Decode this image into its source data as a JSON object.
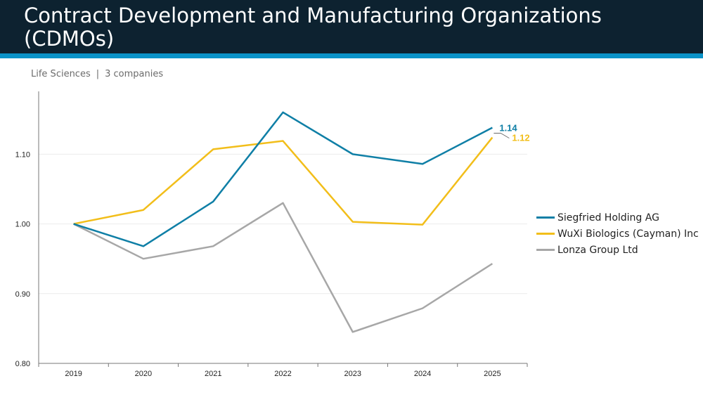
{
  "header": {
    "title": "Contract Development and Manufacturing Organizations (CDMOs)",
    "subtitle_sector": "Life Sciences",
    "subtitle_separator": "|",
    "subtitle_count": "3 companies"
  },
  "colors": {
    "header_bg": "#0d2230",
    "stripe": "#0a93c8"
  },
  "chart_data": {
    "type": "line",
    "x": [
      "2019",
      "2020",
      "2021",
      "2022",
      "2023",
      "2024",
      "2025"
    ],
    "ylim": [
      0.8,
      1.18
    ],
    "yticks": [
      0.8,
      0.9,
      1.0,
      1.1
    ],
    "ytick_labels": [
      "0.80",
      "0.90",
      "1.00",
      "1.10"
    ],
    "grid": true,
    "legend_position": "right",
    "series": [
      {
        "name": "Siegfried Holding AG",
        "color": "#0f7fa6",
        "values": [
          1.0,
          0.968,
          1.032,
          1.16,
          1.1,
          1.086,
          1.138
        ],
        "end_label": "1.14"
      },
      {
        "name": "WuXi Biologics (Cayman) Inc",
        "color": "#f2be1a",
        "values": [
          1.0,
          1.02,
          1.107,
          1.119,
          1.003,
          0.999,
          1.124
        ],
        "end_label": "1.12"
      },
      {
        "name": "Lonza Group Ltd",
        "color": "#a7a7a7",
        "values": [
          1.0,
          0.95,
          0.968,
          1.03,
          0.845,
          0.879,
          0.943
        ]
      }
    ]
  }
}
